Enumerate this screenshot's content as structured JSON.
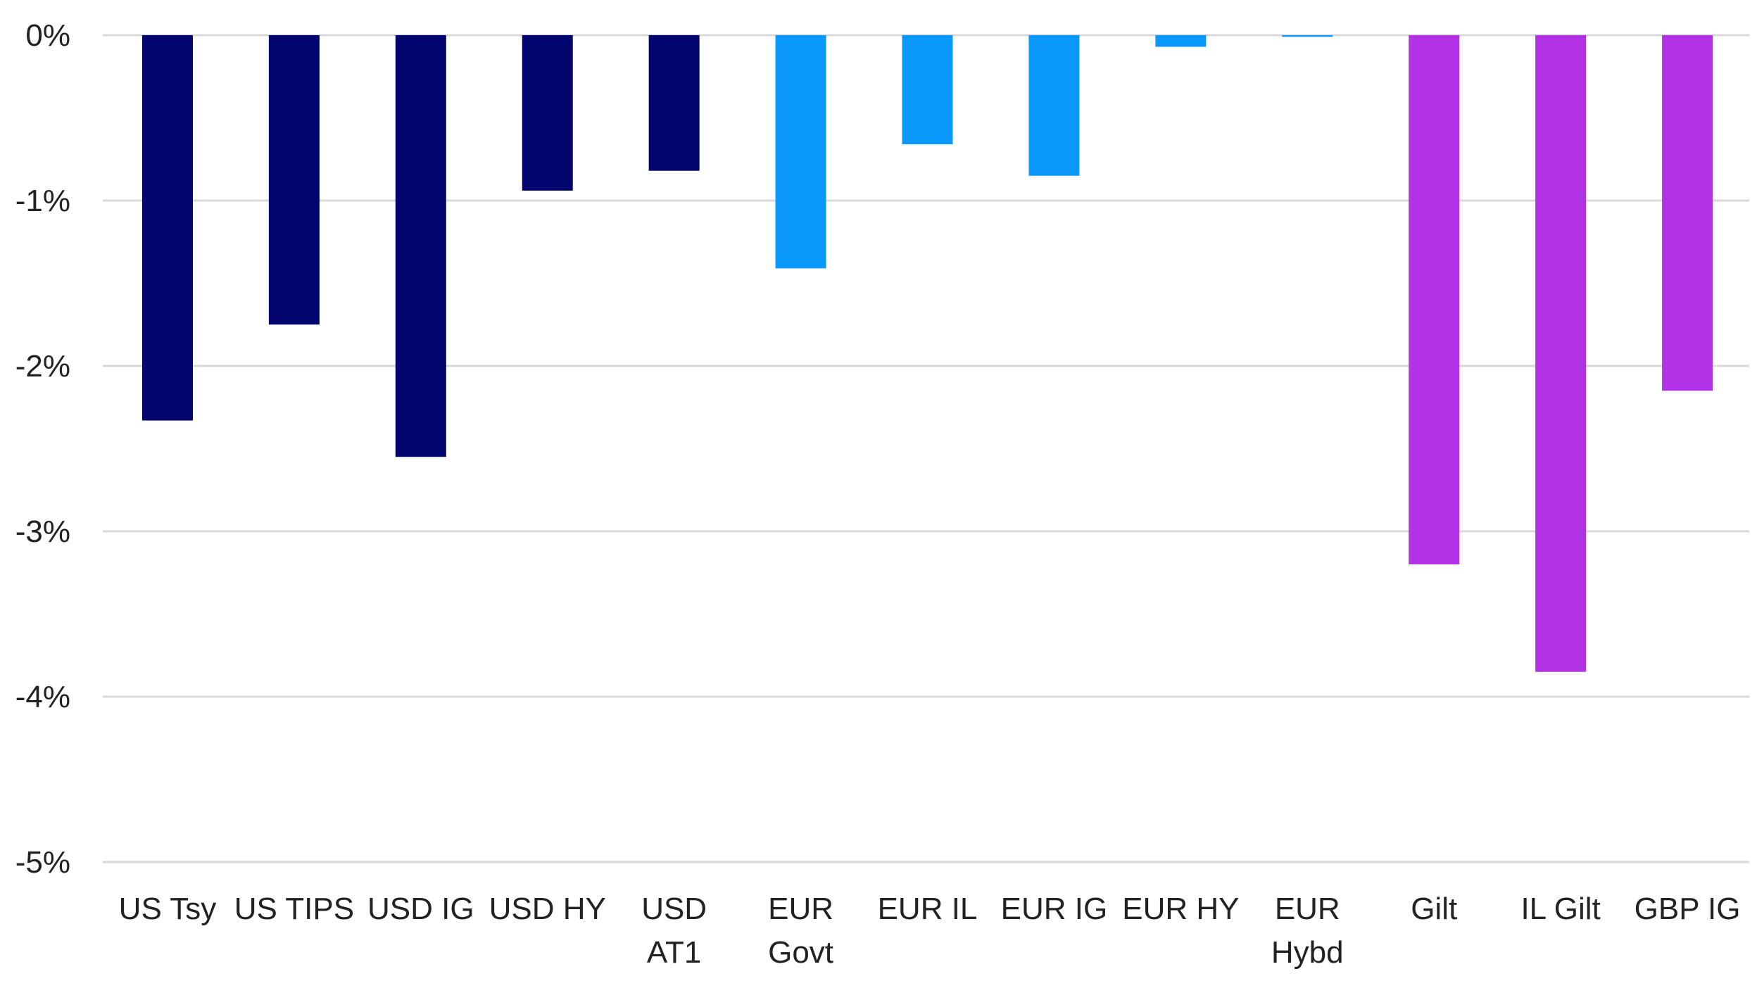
{
  "chart_data": {
    "type": "bar",
    "title": "",
    "xlabel": "",
    "ylabel": "",
    "ylim": [
      -5,
      0
    ],
    "yticks": [
      0,
      -1,
      -2,
      -3,
      -4,
      -5
    ],
    "ytick_labels": [
      "0%",
      "-1%",
      "-2%",
      "-3%",
      "-4%",
      "-5%"
    ],
    "grid": true,
    "legend": "none",
    "categories": [
      {
        "label": [
          "US Tsy"
        ],
        "value": -2.33,
        "color": "#02056e"
      },
      {
        "label": [
          "US TIPS"
        ],
        "value": -1.75,
        "color": "#02056e"
      },
      {
        "label": [
          "USD IG"
        ],
        "value": -2.55,
        "color": "#02056e"
      },
      {
        "label": [
          "USD HY"
        ],
        "value": -0.94,
        "color": "#02056e"
      },
      {
        "label": [
          "USD",
          "AT1"
        ],
        "value": -0.82,
        "color": "#02056e"
      },
      {
        "label": [
          "EUR",
          "Govt"
        ],
        "value": -1.41,
        "color": "#0a99fb"
      },
      {
        "label": [
          "EUR IL"
        ],
        "value": -0.66,
        "color": "#0a99fb"
      },
      {
        "label": [
          "EUR IG"
        ],
        "value": -0.85,
        "color": "#0a99fb"
      },
      {
        "label": [
          "EUR HY"
        ],
        "value": -0.07,
        "color": "#0a99fb"
      },
      {
        "label": [
          "EUR",
          "Hybd"
        ],
        "value": -0.01,
        "color": "#0a99fb"
      },
      {
        "label": [
          "Gilt"
        ],
        "value": -3.2,
        "color": "#b233e6"
      },
      {
        "label": [
          "IL Gilt"
        ],
        "value": -3.85,
        "color": "#b233e6"
      },
      {
        "label": [
          "GBP IG"
        ],
        "value": -2.15,
        "color": "#b233e6"
      }
    ]
  }
}
